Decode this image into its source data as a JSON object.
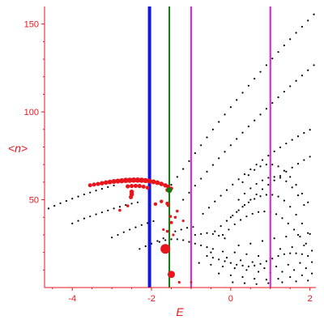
{
  "chart_data": {
    "type": "scatter",
    "title": "",
    "xlabel": "E",
    "ylabel": "<n>",
    "xlim": [
      -4.7,
      2.15
    ],
    "ylim": [
      0,
      160
    ],
    "x_ticks": [
      "-4",
      "-2",
      "0",
      "2"
    ],
    "y_ticks": [
      "50",
      "100",
      "150"
    ],
    "grid": false,
    "legend": "none",
    "colors": {
      "axis": "#e8161c",
      "points": "#000000",
      "highlight": "#e8161c",
      "blue_line": "#1515e0",
      "green_line": "#0f7a0f",
      "magenta_line": "#e01ee0"
    },
    "vertical_lines": [
      {
        "x": -2.05,
        "color": "blue"
      },
      {
        "x": -1.55,
        "color": "green"
      },
      {
        "x": -1.0,
        "color": "magenta"
      },
      {
        "x": 1.0,
        "color": "magenta"
      }
    ],
    "series": [
      {
        "points": [
          [
            -4.6,
            45
          ],
          [
            -4.45,
            46.5
          ],
          [
            -4.3,
            48
          ],
          [
            -4.15,
            49.3
          ],
          [
            -4.0,
            50.6
          ],
          [
            -3.85,
            51.8
          ],
          [
            -3.7,
            53
          ],
          [
            -3.55,
            54.1
          ],
          [
            -3.4,
            55.2
          ],
          [
            -3.25,
            56.2
          ],
          [
            -3.1,
            57.2
          ],
          [
            -2.95,
            58.1
          ],
          [
            -4.0,
            36.5
          ],
          [
            -3.85,
            38
          ],
          [
            -3.7,
            39.3
          ],
          [
            -3.55,
            40.5
          ],
          [
            -3.4,
            41.7
          ],
          [
            -3.25,
            42.8
          ],
          [
            -3.1,
            43.9
          ],
          [
            -2.95,
            45
          ],
          [
            -2.8,
            46
          ],
          [
            -2.65,
            47
          ],
          [
            -2.5,
            47.8
          ],
          [
            -2.35,
            48.5
          ],
          [
            -3.0,
            28.5
          ],
          [
            -2.85,
            30
          ],
          [
            -2.7,
            31.5
          ],
          [
            -2.55,
            33
          ],
          [
            -2.4,
            34.3
          ],
          [
            -2.25,
            35.6
          ],
          [
            -2.1,
            36.7
          ],
          [
            -1.95,
            37.8
          ],
          [
            -2.3,
            22
          ],
          [
            -2.15,
            23.5
          ],
          [
            -2.0,
            25
          ],
          [
            -1.85,
            26.5
          ],
          [
            -1.7,
            28
          ],
          [
            -1.5,
            58.5
          ],
          [
            -1.35,
            63
          ],
          [
            -1.2,
            67.5
          ],
          [
            -1.05,
            72
          ],
          [
            -0.9,
            76.5
          ],
          [
            -0.75,
            81
          ],
          [
            -0.6,
            85.5
          ],
          [
            -0.45,
            90
          ],
          [
            -0.3,
            94.3
          ],
          [
            -0.15,
            98.5
          ],
          [
            0.0,
            102.7
          ],
          [
            0.15,
            106.8
          ],
          [
            0.3,
            110.9
          ],
          [
            0.45,
            114.9
          ],
          [
            0.6,
            118.9
          ],
          [
            0.75,
            122.8
          ],
          [
            0.9,
            126.6
          ],
          [
            1.05,
            130.4
          ],
          [
            1.2,
            134.1
          ],
          [
            1.35,
            137.8
          ],
          [
            1.5,
            141.4
          ],
          [
            1.65,
            145
          ],
          [
            1.8,
            148.5
          ],
          [
            1.95,
            152
          ],
          [
            2.1,
            155.5
          ],
          [
            -1.2,
            50
          ],
          [
            -1.05,
            54
          ],
          [
            -0.9,
            58
          ],
          [
            -0.75,
            62
          ],
          [
            -0.6,
            66
          ],
          [
            -0.45,
            69.8
          ],
          [
            -0.3,
            73.6
          ],
          [
            -0.15,
            77.3
          ],
          [
            0.0,
            81
          ],
          [
            0.15,
            84.6
          ],
          [
            0.3,
            88.2
          ],
          [
            0.45,
            91.7
          ],
          [
            0.6,
            95.1
          ],
          [
            0.75,
            98.5
          ],
          [
            0.9,
            101.8
          ],
          [
            1.05,
            105.1
          ],
          [
            1.2,
            108.3
          ],
          [
            1.35,
            111.5
          ],
          [
            1.5,
            114.6
          ],
          [
            1.65,
            117.7
          ],
          [
            1.8,
            120.7
          ],
          [
            1.95,
            123.7
          ],
          [
            2.1,
            126.6
          ],
          [
            -0.7,
            42
          ],
          [
            -0.55,
            45.5
          ],
          [
            -0.4,
            49
          ],
          [
            -0.25,
            52.3
          ],
          [
            -0.1,
            55.5
          ],
          [
            0.05,
            58.6
          ],
          [
            0.2,
            61.6
          ],
          [
            0.35,
            64.5
          ],
          [
            0.5,
            67.3
          ],
          [
            0.65,
            70
          ],
          [
            0.8,
            72.6
          ],
          [
            0.95,
            75.1
          ],
          [
            1.1,
            77.5
          ],
          [
            1.25,
            79.8
          ],
          [
            1.4,
            82
          ],
          [
            1.55,
            84.1
          ],
          [
            1.7,
            86.1
          ],
          [
            1.85,
            88
          ],
          [
            2.0,
            89.8
          ],
          [
            -0.4,
            32
          ],
          [
            -0.25,
            35
          ],
          [
            -0.1,
            38
          ],
          [
            0.05,
            41
          ],
          [
            0.2,
            44
          ],
          [
            0.35,
            47
          ],
          [
            0.5,
            50
          ],
          [
            0.65,
            53
          ],
          [
            0.8,
            56
          ],
          [
            0.95,
            58.5
          ],
          [
            1.1,
            61
          ],
          [
            1.25,
            63.5
          ],
          [
            1.4,
            66
          ],
          [
            1.55,
            68.3
          ],
          [
            1.7,
            70.5
          ],
          [
            1.85,
            72.6
          ],
          [
            2.0,
            74.5
          ],
          [
            0.3,
            60
          ],
          [
            0.45,
            64
          ],
          [
            0.6,
            67
          ],
          [
            0.75,
            69
          ],
          [
            0.9,
            70
          ],
          [
            1.05,
            70
          ],
          [
            1.2,
            69
          ],
          [
            1.35,
            66.5
          ],
          [
            1.5,
            63
          ],
          [
            1.65,
            58.5
          ],
          [
            1.8,
            53.5
          ],
          [
            1.95,
            48.5
          ],
          [
            0.2,
            50
          ],
          [
            0.35,
            53.5
          ],
          [
            0.5,
            56.5
          ],
          [
            0.65,
            59
          ],
          [
            0.8,
            61
          ],
          [
            0.95,
            62.5
          ],
          [
            1.1,
            63
          ],
          [
            1.25,
            62.5
          ],
          [
            1.4,
            60.5
          ],
          [
            1.55,
            57
          ],
          [
            1.7,
            52.5
          ],
          [
            1.85,
            47
          ],
          [
            0.0,
            40
          ],
          [
            0.15,
            43
          ],
          [
            0.3,
            46
          ],
          [
            0.45,
            48.5
          ],
          [
            0.6,
            50.5
          ],
          [
            0.75,
            52
          ],
          [
            0.9,
            52.8
          ],
          [
            1.05,
            52.8
          ],
          [
            1.2,
            51.8
          ],
          [
            1.35,
            49.5
          ],
          [
            1.5,
            46
          ],
          [
            1.65,
            41.5
          ],
          [
            1.8,
            36.5
          ],
          [
            1.95,
            31
          ],
          [
            -0.2,
            30
          ],
          [
            -0.05,
            33
          ],
          [
            0.1,
            36
          ],
          [
            0.25,
            38.5
          ],
          [
            0.4,
            40.5
          ],
          [
            0.55,
            42
          ],
          [
            0.7,
            43
          ],
          [
            0.85,
            43.3
          ],
          [
            1.0,
            43
          ],
          [
            1.15,
            41.8
          ],
          [
            1.3,
            39.5
          ],
          [
            1.45,
            36.5
          ],
          [
            1.6,
            33
          ],
          [
            1.75,
            29
          ],
          [
            1.9,
            25
          ],
          [
            2.05,
            21
          ],
          [
            -0.9,
            30
          ],
          [
            -0.75,
            30.5
          ],
          [
            -0.6,
            31
          ],
          [
            -0.45,
            30.5
          ],
          [
            -0.3,
            29.5
          ],
          [
            -0.15,
            28
          ],
          [
            -1.4,
            32
          ],
          [
            -1.25,
            33
          ],
          [
            -1.1,
            34
          ],
          [
            -0.95,
            34.5
          ],
          [
            -1.8,
            26
          ],
          [
            -1.65,
            27
          ],
          [
            -1.5,
            27.5
          ],
          [
            -1.35,
            27.5
          ],
          [
            -1.2,
            27
          ],
          [
            -1.05,
            26
          ],
          [
            -0.9,
            25
          ],
          [
            -0.75,
            24
          ],
          [
            -0.6,
            23
          ],
          [
            -0.45,
            22
          ],
          [
            -0.6,
            18
          ],
          [
            -0.45,
            17
          ],
          [
            -0.3,
            16
          ],
          [
            -0.15,
            15
          ],
          [
            0.0,
            14
          ],
          [
            0.15,
            13
          ],
          [
            0.3,
            12.5
          ],
          [
            0.45,
            12
          ],
          [
            0.6,
            12.5
          ],
          [
            0.75,
            13.5
          ],
          [
            0.9,
            15
          ],
          [
            1.05,
            16.5
          ],
          [
            1.2,
            18
          ],
          [
            1.35,
            19
          ],
          [
            1.5,
            19.5
          ],
          [
            1.65,
            19.5
          ],
          [
            1.8,
            19
          ],
          [
            1.95,
            18
          ],
          [
            -0.5,
            20
          ],
          [
            -0.2,
            20.5
          ],
          [
            0.1,
            20
          ],
          [
            0.4,
            19
          ],
          [
            0.7,
            18
          ],
          [
            1.0,
            17
          ],
          [
            -0.8,
            14
          ],
          [
            -0.5,
            13
          ],
          [
            -0.2,
            12
          ],
          [
            0.1,
            11
          ],
          [
            0.4,
            10
          ],
          [
            0.7,
            9
          ],
          [
            1.0,
            8.5
          ],
          [
            1.3,
            9
          ],
          [
            1.6,
            10
          ],
          [
            1.9,
            11
          ],
          [
            -0.3,
            8
          ],
          [
            0.0,
            7
          ],
          [
            0.3,
            6
          ],
          [
            0.6,
            5
          ],
          [
            0.9,
            4.5
          ],
          [
            1.2,
            5
          ],
          [
            1.5,
            6
          ],
          [
            1.8,
            7
          ],
          [
            2.05,
            8
          ],
          [
            0.2,
            24
          ],
          [
            0.5,
            25
          ],
          [
            0.8,
            26.5
          ],
          [
            1.1,
            28
          ],
          [
            1.4,
            29
          ],
          [
            1.7,
            30
          ],
          [
            2.0,
            30.5
          ],
          [
            1.25,
            22
          ],
          [
            1.55,
            23
          ],
          [
            1.85,
            24
          ],
          [
            0.05,
            3
          ],
          [
            0.35,
            2.5
          ],
          [
            0.65,
            2
          ],
          [
            0.95,
            2.5
          ],
          [
            1.3,
            3
          ],
          [
            1.65,
            3.5
          ],
          [
            1.95,
            4
          ],
          [
            -0.1,
            17
          ],
          [
            0.25,
            15.5
          ],
          [
            0.55,
            14.5
          ],
          [
            0.85,
            11
          ],
          [
            1.15,
            12
          ],
          [
            1.45,
            13
          ],
          [
            1.75,
            14
          ],
          [
            2.05,
            14.5
          ]
        ]
      }
    ],
    "highlight_points": [
      [
        -3.55,
        58.2,
        2.5
      ],
      [
        -3.45,
        58.6,
        2.5
      ],
      [
        -3.35,
        59,
        2.6
      ],
      [
        -3.25,
        59.4,
        2.7
      ],
      [
        -3.15,
        59.8,
        2.8
      ],
      [
        -3.05,
        60.1,
        2.9
      ],
      [
        -2.95,
        60.4,
        3
      ],
      [
        -2.85,
        60.6,
        3.1
      ],
      [
        -2.75,
        60.8,
        3.2
      ],
      [
        -2.65,
        61,
        3.3
      ],
      [
        -2.55,
        61.1,
        3.3
      ],
      [
        -2.45,
        61.2,
        3.3
      ],
      [
        -2.35,
        61.2,
        3.3
      ],
      [
        -2.25,
        61.1,
        3.3
      ],
      [
        -2.15,
        60.9,
        3.2
      ],
      [
        -2.05,
        60.6,
        3.1
      ],
      [
        -1.95,
        60.2,
        3
      ],
      [
        -1.85,
        59.7,
        2.9
      ],
      [
        -1.75,
        59,
        2.8
      ],
      [
        -1.65,
        58.2,
        2.7
      ],
      [
        -1.58,
        57.4,
        2.5
      ],
      [
        -1.5,
        56.4,
        2.3
      ],
      [
        -2.6,
        57.6,
        2.6
      ],
      [
        -2.5,
        57.8,
        2.6
      ],
      [
        -2.4,
        57.9,
        2.6
      ],
      [
        -2.3,
        57.8,
        2.6
      ],
      [
        -2.2,
        57.4,
        2.5
      ],
      [
        -2.1,
        56.8,
        2.4
      ],
      [
        -2.5,
        54.5,
        2.8
      ],
      [
        -2.5,
        53,
        2.8
      ],
      [
        -2.52,
        51.5,
        2.6
      ],
      [
        -1.6,
        55.5,
        2.4
      ],
      [
        -1.55,
        54.8,
        2.2
      ],
      [
        -1.9,
        47.5,
        2.2
      ],
      [
        -1.75,
        49,
        2.2
      ],
      [
        -1.6,
        47.8,
        2.4
      ],
      [
        -1.58,
        46.8,
        2
      ],
      [
        -2.8,
        44,
        1.8
      ],
      [
        -2.6,
        46.5,
        1.8
      ],
      [
        -1.35,
        43.5,
        1.8
      ],
      [
        -1.4,
        40,
        1.8
      ],
      [
        -1.5,
        37,
        2
      ],
      [
        -1.52,
        40.5,
        1.8
      ],
      [
        -1.6,
        32,
        1.8
      ],
      [
        -1.7,
        33,
        1.6
      ],
      [
        -1.45,
        30,
        1.6
      ],
      [
        -1.2,
        38,
        1.6
      ],
      [
        -1.65,
        22,
        6
      ],
      [
        -1.5,
        7.5,
        4.5
      ],
      [
        -1.3,
        3,
        1.6
      ],
      [
        -1.0,
        3,
        1.4
      ]
    ],
    "vertical_line_marker": {
      "x": -1.55,
      "y": 55.5,
      "color": "green",
      "r": 3.5
    }
  }
}
